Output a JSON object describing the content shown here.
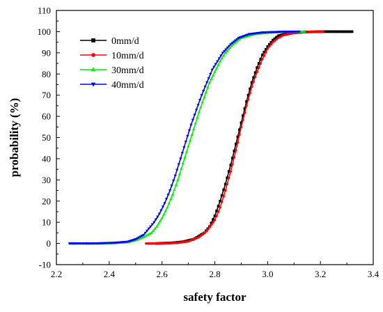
{
  "chart_data": {
    "type": "line",
    "title": "",
    "xlabel": "safety factor",
    "ylabel": "probability (%)",
    "xlim": [
      2.2,
      3.4
    ],
    "ylim": [
      -10,
      110
    ],
    "xticks": [
      2.2,
      2.4,
      2.6,
      2.8,
      3.0,
      3.2,
      3.4
    ],
    "yticks": [
      -10,
      0,
      10,
      20,
      30,
      40,
      50,
      60,
      70,
      80,
      90,
      100,
      110
    ],
    "xtick_labels": [
      "2.2",
      "2.4",
      "2.6",
      "2.8",
      "3.0",
      "3.2",
      "3.4"
    ],
    "ytick_labels": [
      "-10",
      "0",
      "10",
      "20",
      "30",
      "40",
      "50",
      "60",
      "70",
      "80",
      "90",
      "100",
      "110"
    ],
    "grid": false,
    "legend_position": "top-left",
    "series": [
      {
        "name": "0mm/d",
        "color": "#000000",
        "marker": "square",
        "x": [
          2.58,
          2.64,
          2.68,
          2.72,
          2.76,
          2.78,
          2.8,
          2.82,
          2.84,
          2.86,
          2.88,
          2.9,
          2.92,
          2.94,
          2.96,
          2.98,
          3.0,
          3.02,
          3.04,
          3.08,
          3.14,
          3.2,
          3.26,
          3.32
        ],
        "y": [
          0,
          0.3,
          0.8,
          2,
          5,
          8,
          13,
          20,
          28,
          37,
          47,
          57,
          67,
          76,
          83,
          89,
          93,
          96,
          98,
          99.3,
          99.8,
          100,
          100,
          100
        ]
      },
      {
        "name": "10mm/d",
        "color": "#ff0000",
        "marker": "circle",
        "x": [
          2.54,
          2.6,
          2.66,
          2.7,
          2.74,
          2.77,
          2.8,
          2.82,
          2.84,
          2.86,
          2.88,
          2.9,
          2.92,
          2.94,
          2.96,
          2.98,
          3.0,
          3.02,
          3.04,
          3.06,
          3.1,
          3.16,
          3.21
        ],
        "y": [
          0,
          0,
          0.3,
          1,
          3,
          6,
          11,
          17,
          25,
          34,
          44,
          55,
          65,
          74,
          81,
          87,
          92,
          95,
          97,
          98.3,
          99.4,
          99.9,
          100
        ]
      },
      {
        "name": "30mm/d",
        "color": "#00ee00",
        "marker": "triangle-up",
        "x": [
          2.25,
          2.35,
          2.42,
          2.47,
          2.5,
          2.53,
          2.56,
          2.58,
          2.6,
          2.62,
          2.64,
          2.66,
          2.68,
          2.7,
          2.72,
          2.74,
          2.76,
          2.78,
          2.8,
          2.82,
          2.84,
          2.87,
          2.9,
          2.95,
          3.0,
          3.07,
          3.14
        ],
        "y": [
          0,
          0,
          0.2,
          0.6,
          1.5,
          3,
          5,
          8,
          12,
          17,
          23,
          30,
          38,
          46,
          54,
          62,
          69,
          76,
          81,
          86,
          90,
          94,
          97,
          98.8,
          99.5,
          99.9,
          100
        ]
      },
      {
        "name": "40mm/d",
        "color": "#0000ff",
        "marker": "triangle-down",
        "x": [
          2.25,
          2.35,
          2.42,
          2.47,
          2.5,
          2.53,
          2.55,
          2.57,
          2.59,
          2.61,
          2.63,
          2.65,
          2.67,
          2.69,
          2.71,
          2.73,
          2.75,
          2.77,
          2.79,
          2.81,
          2.83,
          2.86,
          2.89,
          2.93,
          2.98,
          3.05,
          3.12
        ],
        "y": [
          0,
          0,
          0.3,
          0.8,
          2,
          4,
          7,
          10,
          14,
          19,
          25,
          32,
          40,
          48,
          56,
          63,
          70,
          76,
          82,
          86,
          90,
          94,
          97,
          98.8,
          99.6,
          99.9,
          100
        ]
      }
    ]
  }
}
